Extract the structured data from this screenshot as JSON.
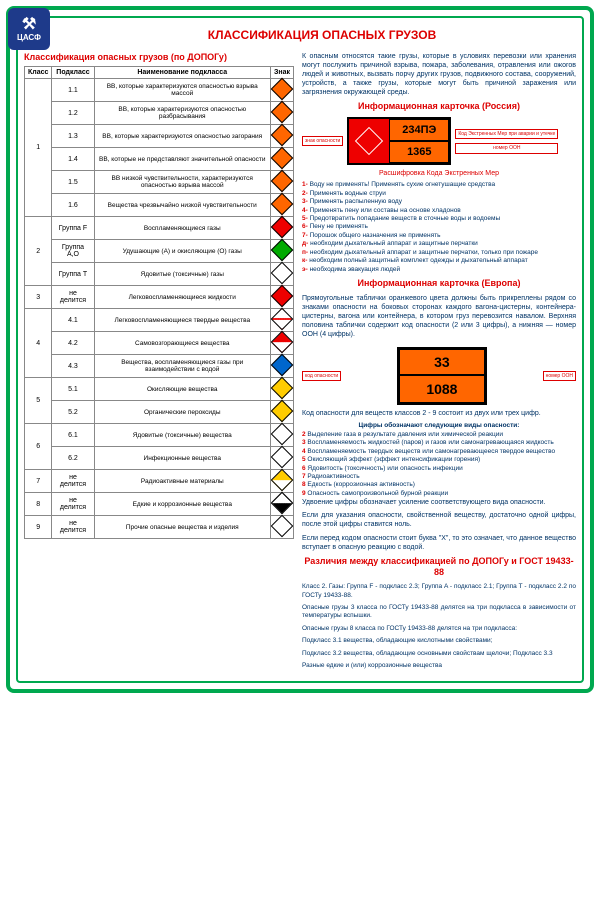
{
  "logo_text": "ЦАСФ",
  "title": "КЛАССИФИКАЦИЯ ОПАСНЫХ ГРУЗОВ",
  "subtitle_left": "Классификация опасных грузов (по ДОПОГу)",
  "table": {
    "headers": [
      "Класс",
      "Подкласс",
      "Наименование подкласса",
      "Знак"
    ],
    "rows": [
      {
        "class": "1",
        "class_rowspan": 6,
        "sub": "1.1",
        "name": "ВВ, которые характеризуются опасностью взрыва массой",
        "color": "d-orange"
      },
      {
        "sub": "1.2",
        "name": "ВВ, которые характеризуются опасностью разбрасывания",
        "color": "d-orange"
      },
      {
        "sub": "1.3",
        "name": "ВВ, которые характеризуются опасностью загорания",
        "color": "d-orange"
      },
      {
        "sub": "1.4",
        "name": "ВВ, которые не представляют значительной опасности",
        "color": "d-orange"
      },
      {
        "sub": "1.5",
        "name": "ВВ низкой чувствительности, характеризуются опасностью взрыва массой",
        "color": "d-orange"
      },
      {
        "sub": "1.6",
        "name": "Вещества чрезвычайно низкой чувствительности",
        "color": "d-orange"
      },
      {
        "class": "2",
        "class_rowspan": 3,
        "sub": "Группа F",
        "name": "Воспламеняющиеся газы",
        "color": "d-red"
      },
      {
        "sub": "Группа A,O",
        "name": "Удушающие (А) и окисляющие (О) газы",
        "color": "d-green"
      },
      {
        "sub": "Группа T",
        "name": "Ядовитые (токсичные) газы",
        "color": "d-white"
      },
      {
        "class": "3",
        "class_rowspan": 1,
        "sub": "не делится",
        "name": "Легковоспламеняющиеся жидкости",
        "color": "d-red"
      },
      {
        "class": "4",
        "class_rowspan": 3,
        "sub": "4.1",
        "name": "Легковоспламеняющиеся твердые вещества",
        "color": "d-whitered"
      },
      {
        "sub": "4.2",
        "name": "Самовозгорающиеся вещества",
        "color": "d-redwhite"
      },
      {
        "sub": "4.3",
        "name": "Вещества, воспламеняющиеся газы при взаимодействии с водой",
        "color": "d-blue"
      },
      {
        "class": "5",
        "class_rowspan": 2,
        "sub": "5.1",
        "name": "Окисляющие вещества",
        "color": "d-yellow"
      },
      {
        "sub": "5.2",
        "name": "Органические пероксиды",
        "color": "d-yellow"
      },
      {
        "class": "6",
        "class_rowspan": 2,
        "sub": "6.1",
        "name": "Ядовитые (токсичные) вещества",
        "color": "d-white"
      },
      {
        "sub": "6.2",
        "name": "Инфекционные вещества",
        "color": "d-white"
      },
      {
        "class": "7",
        "class_rowspan": 1,
        "sub": "не делится",
        "name": "Радиоактивные материалы",
        "color": "d-yellowwhite"
      },
      {
        "class": "8",
        "class_rowspan": 1,
        "sub": "не делится",
        "name": "Едкие и коррозионные вещества",
        "color": "d-blackwhite"
      },
      {
        "class": "9",
        "class_rowspan": 1,
        "sub": "не делится",
        "name": "Прочие опасные вещества и изделия",
        "color": "d-white"
      }
    ]
  },
  "intro": "К опасным относятся такие грузы, которые в условиях перевозки или хранения могут послужить причиной взрыва, пожара, заболевания, отравления или ожогов людей и животных, вызвать порчу других грузов, подвижного состава, сооружений, устройств, а также грузы, которые могут быть причиной заражения или загрязнения окружающей среды.",
  "card_ru_title": "Информационная карточка (Россия)",
  "card_ru": {
    "label_left": "знак опасности",
    "code1": "234ПЭ",
    "code2": "1365",
    "label_top": "Код Экстренных Мер при аварии и утечке",
    "label_bottom": "номер ООН"
  },
  "decrypt_title": "Расшифровка Кода Экстренных Мер",
  "decrypt": [
    "Воду не применять! Применять сухие огнетушащие средства",
    "Применять водные струи",
    "Применять распыленную воду",
    "Применять пену или составы на основе хладонов",
    "Предотвратить попадание веществ в сточные воды и водоемы",
    "Пену не применять",
    "Порошок общего назначения не применять",
    "необходим дыхательный аппарат и защитные перчатки",
    "необходим дыхательный аппарат и защитные перчатки, только при пожаре",
    "необходим полный защитный комплект одежды и дыхательный аппарат",
    "необходима эвакуация людей"
  ],
  "decrypt_labels": [
    "1",
    "2",
    "3",
    "4",
    "5",
    "6",
    "7",
    "д",
    "п",
    "к",
    "э"
  ],
  "card_eu_title": "Информационная карточка (Европа)",
  "eu_para": "Прямоугольные таблички оранжевого цвета должны быть прикреплены рядом со знаками опасности на боковых сторонах каждого вагона-цистерны, контейнера-цистерны, вагона или контейнера, в котором груз перевозится навалом. Верхняя половина таблички содержит код опасности (2 или 3 цифры), а нижняя — номер ООН (4 цифры).",
  "card_eu": {
    "code1": "33",
    "code2": "1088",
    "label_left": "код опасности",
    "label_right": "номер ООН"
  },
  "digits_intro": "Код опасности для веществ классов 2 - 9 состоит из двух или трех цифр.",
  "digits_title": "Цифры обозначают следующие виды опасности:",
  "digits": [
    "Выделение газа в результате давления или химической реакции",
    "Воспламеняемость жидкостей (паров) и газов или самонагревающаяся жидкость",
    "Воспламеняемость твердых веществ или самонагревающееся твердое вещество",
    "Окисляющий эффект (эффект интенсификации горения)",
    "Ядовитость (токсичность) или опасность инфекции",
    "Радиоактивность",
    "Едкость (коррозионная активность)",
    "Опасность самопроизвольной бурной реакции"
  ],
  "digits_note1": "Удвоение цифры обозначает усиление соответствующего вида опасности.",
  "digits_note2": "Если для указания опасности, свойственной веществу, достаточно одной цифры, после этой цифры ставится ноль.",
  "digits_note3": "Если перед кодом опасности стоит буква \"Х\", то это означает, что данное вещество вступает в опасную реакцию с водой.",
  "diff_title": "Различия между классификацией по ДОПОГу и ГОСТ 19433-88",
  "diff": [
    "Класс 2. Газы: Группа F - подкласс 2.3; Группа A - подкласс 2.1; Группа T - подкласс 2.2 по ГОСТу 19433-88.",
    "Опасные грузы 3 класса по ГОСТу 19433-88 делятся на три подкласса в зависимости от температуры вспышки.",
    "Опасные грузы 8 класса по ГОСТу 19433-88 делятся на три подкласса:",
    "Подкласс 3.1 вещества, обладающие кислотными свойствами;",
    "Подкласс 3.2 вещества, обладающие основными свойствам щелочи; Подкласс 3.3",
    "Разные едкие и (или) коррозионные вещества"
  ]
}
